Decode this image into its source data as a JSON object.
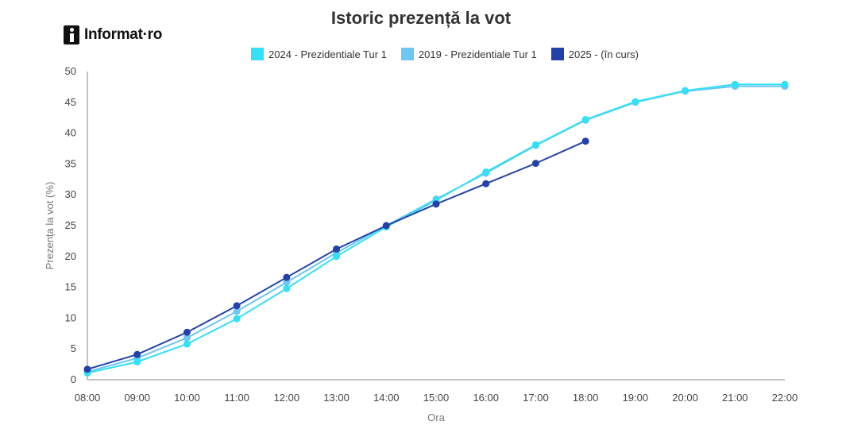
{
  "logo": {
    "text": "Informat·ro"
  },
  "chart_data": {
    "type": "line",
    "title": "Istoric prezență la vot",
    "xlabel": "Ora",
    "ylabel": "Prezența la vot (%)",
    "ylim": [
      0,
      50
    ],
    "yticks": [
      0,
      5,
      10,
      15,
      20,
      25,
      30,
      35,
      40,
      45,
      50
    ],
    "categories": [
      "08:00",
      "09:00",
      "10:00",
      "11:00",
      "12:00",
      "13:00",
      "14:00",
      "15:00",
      "16:00",
      "17:00",
      "18:00",
      "19:00",
      "20:00",
      "21:00",
      "22:00"
    ],
    "grid": false,
    "legend_position": "top",
    "series": [
      {
        "name": "2024 - Prezidentiale Tur 1",
        "color": "#33e0f5",
        "values": [
          1.1,
          2.9,
          5.8,
          9.9,
          14.8,
          20.0,
          24.8,
          29.1,
          33.7,
          38.1,
          42.2,
          45.1,
          46.9,
          47.9,
          47.9
        ]
      },
      {
        "name": "2019 - Prezidentiale Tur 1",
        "color": "#6ec6f2",
        "values": [
          1.3,
          3.5,
          6.8,
          11.1,
          15.8,
          20.6,
          25.0,
          29.3,
          33.5,
          38.0,
          42.1,
          45.0,
          46.8,
          47.6,
          47.6
        ]
      },
      {
        "name": "2025 -  (în curs)",
        "color": "#2341a8",
        "values": [
          1.7,
          4.1,
          7.7,
          12.0,
          16.6,
          21.2,
          25.0,
          28.5,
          31.8,
          35.1,
          38.7,
          null,
          null,
          null,
          null
        ]
      }
    ]
  }
}
